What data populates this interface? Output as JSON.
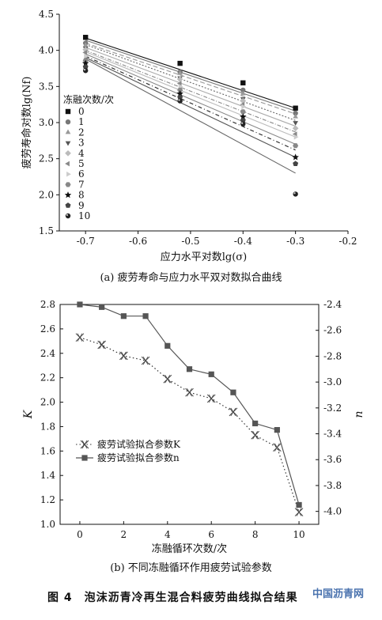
{
  "figure_title": "图 4　泡沫沥青冷再生混合料疲劳曲线拟合结果",
  "watermark": "中国沥青网",
  "chart_data": [
    {
      "type": "scatter",
      "caption": "(a) 疲劳寿命与应力水平双对数拟合曲线",
      "xlabel": "应力水平对数lg(σ)",
      "ylabel": "疲劳寿命对数lg(Nf)",
      "xlim": [
        -0.75,
        -0.2
      ],
      "ylim": [
        1.5,
        4.5
      ],
      "xticks": [
        "-0.7",
        "-0.6",
        "-0.5",
        "-0.4",
        "-0.3",
        "-0.2"
      ],
      "yticks": [
        "1.5",
        "2.0",
        "2.5",
        "3.0",
        "3.5",
        "4.0",
        "4.5"
      ],
      "legend_title": "冻融次数/次",
      "legend_position": "left",
      "series": [
        {
          "name": "0",
          "marker": "square",
          "color": "#111111",
          "dash": "",
          "x": [
            -0.7,
            -0.52,
            -0.4,
            -0.3
          ],
          "y": [
            4.18,
            3.82,
            3.55,
            3.2
          ],
          "fit": [
            4.17,
            3.2
          ]
        },
        {
          "name": "1",
          "marker": "circle",
          "color": "#777777",
          "dash": "",
          "x": [
            -0.7,
            -0.52,
            -0.4,
            -0.3
          ],
          "y": [
            4.1,
            3.7,
            3.45,
            3.13
          ],
          "fit": [
            4.14,
            3.16
          ]
        },
        {
          "name": "2",
          "marker": "triangle-up",
          "color": "#999999",
          "dash": "6,3",
          "x": [
            -0.7,
            -0.52,
            -0.4,
            -0.3
          ],
          "y": [
            4.07,
            3.68,
            3.4,
            3.08
          ],
          "fit": [
            4.1,
            3.12
          ]
        },
        {
          "name": "3",
          "marker": "triangle-down",
          "color": "#666666",
          "dash": "2,2",
          "x": [
            -0.7,
            -0.52,
            -0.4,
            -0.3
          ],
          "y": [
            4.03,
            3.62,
            3.33,
            3.0
          ],
          "fit": [
            4.08,
            3.03
          ]
        },
        {
          "name": "4",
          "marker": "diamond",
          "color": "#aaaaaa",
          "dash": "",
          "x": [
            -0.7,
            -0.52,
            -0.4,
            -0.3
          ],
          "y": [
            4.01,
            3.6,
            3.3,
            2.92
          ],
          "fit": [
            4.04,
            2.95
          ]
        },
        {
          "name": "5",
          "marker": "triangle-left",
          "color": "#888888",
          "dash": "5,2,1,2",
          "x": [
            -0.7,
            -0.52,
            -0.4,
            -0.3
          ],
          "y": [
            3.97,
            3.54,
            3.25,
            2.84
          ],
          "fit": [
            4.0,
            2.87
          ]
        },
        {
          "name": "6",
          "marker": "triangle-right",
          "color": "#bbbbbb",
          "dash": "",
          "x": [
            -0.7,
            -0.52,
            -0.4,
            -0.3
          ],
          "y": [
            3.92,
            3.5,
            3.22,
            2.8
          ],
          "fit": [
            3.98,
            2.8
          ]
        },
        {
          "name": "7",
          "marker": "hexagon",
          "color": "#888888",
          "dash": "",
          "x": [
            -0.7,
            -0.52,
            -0.4,
            -0.3
          ],
          "y": [
            3.86,
            3.45,
            3.15,
            2.68
          ],
          "fit": [
            3.95,
            2.7
          ]
        },
        {
          "name": "8",
          "marker": "star",
          "color": "#222222",
          "dash": "5,3,1,3",
          "x": [
            -0.7,
            -0.52,
            -0.4,
            -0.3
          ],
          "y": [
            3.82,
            3.4,
            3.08,
            2.52
          ],
          "fit": [
            3.92,
            2.62
          ]
        },
        {
          "name": "9",
          "marker": "pentagon",
          "color": "#555555",
          "dash": "",
          "x": [
            -0.7,
            -0.52,
            -0.4,
            -0.3
          ],
          "y": [
            3.77,
            3.35,
            3.03,
            2.43
          ],
          "fit": [
            3.9,
            2.52
          ]
        },
        {
          "name": "10",
          "marker": "ball",
          "color": "#666666",
          "dash": "",
          "x": [
            -0.7,
            -0.52,
            -0.4,
            -0.3
          ],
          "y": [
            3.72,
            3.3,
            2.98,
            2.01
          ],
          "fit": [
            3.88,
            2.3
          ]
        }
      ]
    },
    {
      "type": "line",
      "caption": "(b) 不同冻融循环作用疲劳试验参数",
      "xlabel": "冻融循环次数/次",
      "ylabel_left": "K",
      "ylabel_right": "n",
      "x": [
        0,
        1,
        2,
        3,
        4,
        5,
        6,
        7,
        8,
        9,
        10
      ],
      "xticks": [
        "0",
        "2",
        "4",
        "6",
        "8",
        "10"
      ],
      "xlim": [
        -0.9,
        10.9
      ],
      "ylim_left": [
        1.0,
        2.8
      ],
      "ylim_right": [
        -4.1,
        -2.4
      ],
      "yticks_left": [
        "1.0",
        "1.2",
        "1.4",
        "1.6",
        "1.8",
        "2.0",
        "2.2",
        "2.4",
        "2.6",
        "2.8"
      ],
      "yticks_right": [
        "-2.4",
        "-2.6",
        "-2.8",
        "-3.0",
        "-3.2",
        "-3.4",
        "-3.6",
        "-3.8",
        "-4.0"
      ],
      "legend_position": "lower-left",
      "series": [
        {
          "name": "疲劳试验拟合参数K",
          "axis": "left",
          "marker": "x",
          "line": "dotted",
          "values": [
            2.53,
            2.47,
            2.38,
            2.34,
            2.19,
            2.08,
            2.03,
            1.92,
            1.73,
            1.63,
            1.1
          ]
        },
        {
          "name": "疲劳试验拟合参数n",
          "axis": "right",
          "marker": "square",
          "line": "solid",
          "values": [
            -2.4,
            -2.42,
            -2.49,
            -2.49,
            -2.72,
            -2.9,
            -2.94,
            -3.08,
            -3.32,
            -3.37,
            -3.95
          ]
        }
      ]
    }
  ]
}
